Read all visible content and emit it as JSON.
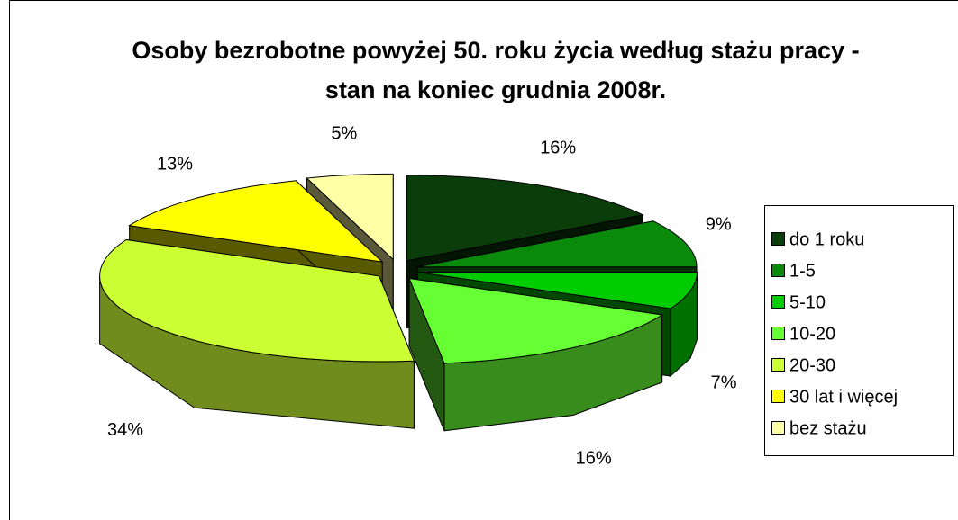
{
  "chart_data": {
    "type": "pie",
    "title": "Osoby bezrobotne powyżej 50. roku życia według stażu pracy - stan na koniec grudnia 2008r.",
    "categories": [
      "do 1 roku",
      "1-5",
      "5-10",
      "10-20",
      "20-30",
      "30 lat i więcej",
      "bez stażu"
    ],
    "values": [
      16,
      9,
      7,
      16,
      34,
      13,
      5
    ],
    "value_labels": [
      "16%",
      "9%",
      "7%",
      "16%",
      "34%",
      "13%",
      "5%"
    ],
    "colors": [
      "#0b3d0b",
      "#0a8a0a",
      "#00cc00",
      "#66ff33",
      "#ccff33",
      "#ffff00",
      "#ffffa6"
    ],
    "legend": "right"
  }
}
